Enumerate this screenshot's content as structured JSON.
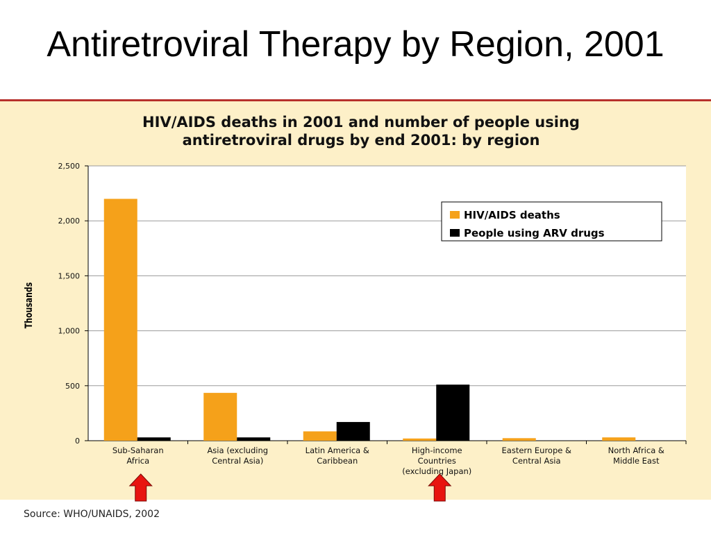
{
  "slide": {
    "title": "Antiretroviral Therapy by Region, 2001",
    "source": "Source: WHO/UNAIDS, 2002"
  },
  "colors": {
    "title_rule": "#b7312c",
    "panel_bg": "#fdf0c8",
    "deaths": "#f5a11a",
    "arv": "#000000",
    "arrow": "#e8140f"
  },
  "chart_data": {
    "type": "bar",
    "title_lines": [
      "HIV/AIDS deaths in 2001 and number of people using",
      "antiretroviral drugs by end 2001: by region"
    ],
    "ylabel": "Thousands",
    "xlabel": "",
    "ylim": [
      0,
      2500
    ],
    "yticks": [
      0,
      500,
      1000,
      1500,
      2000,
      2500
    ],
    "ytick_labels": [
      "0",
      "500",
      "1,000",
      "1,500",
      "2,000",
      "2,500"
    ],
    "grid": true,
    "legend_position": "top-right",
    "categories": [
      [
        "Sub-Saharan",
        "Africa"
      ],
      [
        "Asia (excluding",
        "Central Asia)"
      ],
      [
        "Latin America &",
        "Caribbean"
      ],
      [
        "High-income",
        "Countries",
        "(excluding Japan)"
      ],
      [
        "Eastern Europe &",
        "Central Asia"
      ],
      [
        "North Africa &",
        "Middle East"
      ]
    ],
    "series": [
      {
        "name": "HIV/AIDS deaths",
        "color": "#f5a11a",
        "values": [
          2200,
          435,
          85,
          20,
          23,
          30
        ]
      },
      {
        "name": "People using ARV drugs",
        "color": "#000000",
        "values": [
          30,
          30,
          170,
          510,
          0,
          0
        ]
      }
    ],
    "highlighted_categories": [
      0,
      3
    ]
  }
}
